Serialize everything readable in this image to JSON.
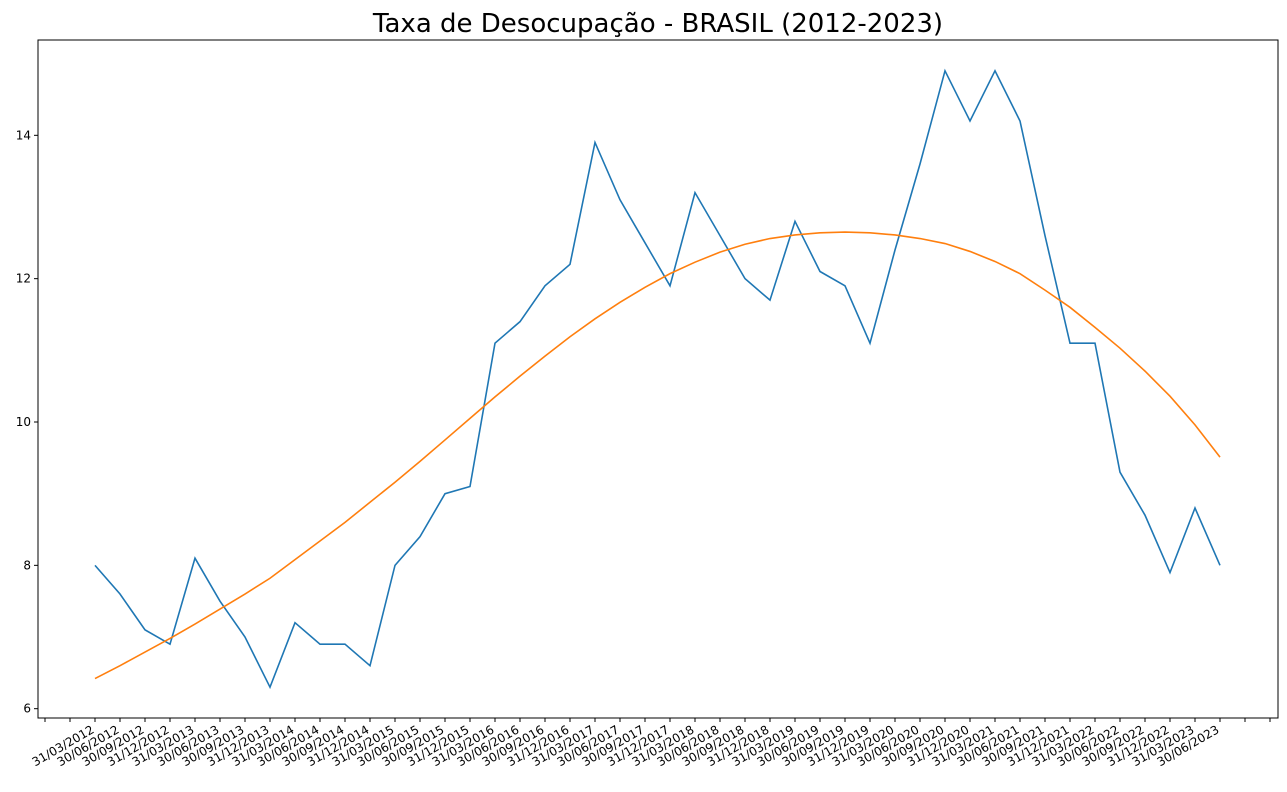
{
  "chart_data": {
    "type": "line",
    "title": "Taxa de Desocupação - BRASIL (2012-2023)",
    "categories": [
      null,
      null,
      "31/03/2012",
      "30/06/2012",
      "30/09/2012",
      "31/12/2012",
      "31/03/2013",
      "30/06/2013",
      "30/09/2013",
      "31/12/2013",
      "31/03/2014",
      "30/06/2014",
      "30/09/2014",
      "31/12/2014",
      "31/03/2015",
      "30/06/2015",
      "30/09/2015",
      "31/12/2015",
      "31/03/2016",
      "30/06/2016",
      "30/09/2016",
      "31/12/2016",
      "31/03/2017",
      "30/06/2017",
      "30/09/2017",
      "31/12/2017",
      "31/03/2018",
      "30/06/2018",
      "30/09/2018",
      "31/12/2018",
      "31/03/2019",
      "30/06/2019",
      "30/09/2019",
      "31/12/2019",
      "31/03/2020",
      "30/06/2020",
      "30/09/2020",
      "31/12/2020",
      "31/03/2021",
      "30/06/2021",
      "30/09/2021",
      "31/12/2021",
      "31/03/2022",
      "30/06/2022",
      "30/09/2022",
      "31/12/2022",
      "31/03/2023",
      "30/06/2023",
      null,
      null
    ],
    "series": [
      {
        "color": "#1f77b4",
        "values": [
          null,
          null,
          8.0,
          7.6,
          7.1,
          6.9,
          8.1,
          7.5,
          7.0,
          6.3,
          7.2,
          6.9,
          6.9,
          6.6,
          8.0,
          8.4,
          9.0,
          9.1,
          11.1,
          11.4,
          11.9,
          12.2,
          13.9,
          13.1,
          12.5,
          11.9,
          13.2,
          12.6,
          12.0,
          11.7,
          12.8,
          12.1,
          11.9,
          11.1,
          12.4,
          13.6,
          14.9,
          14.2,
          14.9,
          14.2,
          12.6,
          11.1,
          11.1,
          9.3,
          8.7,
          7.9,
          8.8,
          8.0,
          null,
          null
        ]
      },
      {
        "color": "#ff7f0e",
        "values": [
          null,
          null,
          6.42,
          6.6,
          6.79,
          6.98,
          7.18,
          7.39,
          7.6,
          7.82,
          8.08,
          8.34,
          8.6,
          8.88,
          9.16,
          9.45,
          9.75,
          10.05,
          10.35,
          10.64,
          10.92,
          11.19,
          11.44,
          11.67,
          11.88,
          12.07,
          12.23,
          12.37,
          12.48,
          12.56,
          12.61,
          12.64,
          12.65,
          12.64,
          12.61,
          12.56,
          12.49,
          12.38,
          12.24,
          12.07,
          11.84,
          11.6,
          11.32,
          11.03,
          10.71,
          10.36,
          9.96,
          9.51,
          null,
          null
        ]
      }
    ],
    "ylim": [
      5.87,
      15.33
    ],
    "yticks": [
      6,
      8,
      10,
      12,
      14
    ]
  }
}
